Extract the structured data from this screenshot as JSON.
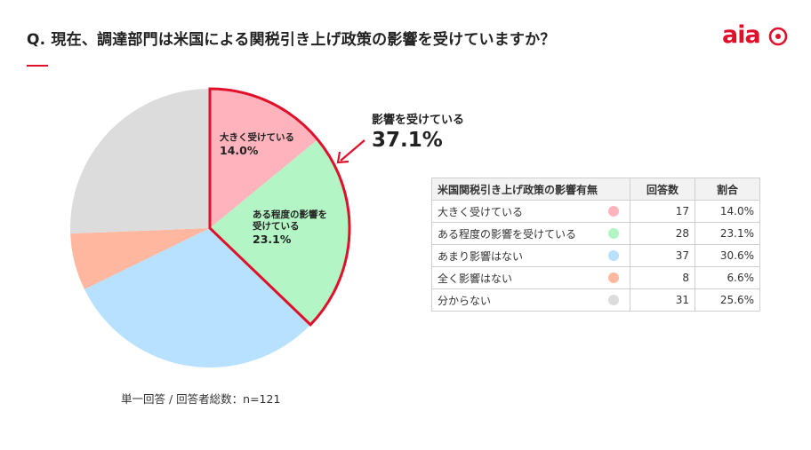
{
  "title": "Q. 現在、調達部門は米国による関税引き上げ政策の影響を受けていますか？",
  "logo": {
    "text": "aia",
    "icon": "aia-brand-mark-icon",
    "color": "#e0102b"
  },
  "chart_data": {
    "type": "pie",
    "start_angle_deg": 0,
    "direction": "clockwise",
    "slices": [
      {
        "label": "大きく受けている",
        "count": 17,
        "percent": 14.0,
        "color": "#ffb3bd"
      },
      {
        "label": "ある程度の影響を受けている",
        "count": 28,
        "percent": 23.1,
        "color": "#b3f5c4"
      },
      {
        "label": "あまり影響はない",
        "count": 37,
        "percent": 30.6,
        "color": "#b8e0ff"
      },
      {
        "label": "全く影響はない",
        "count": 8,
        "percent": 6.6,
        "color": "#ffb89f"
      },
      {
        "label": "分からない",
        "count": 31,
        "percent": 25.6,
        "color": "#dcdcdc"
      }
    ],
    "slice_labels": [
      {
        "text": "大きく受けている",
        "value": "14.0%"
      },
      {
        "text_lines": [
          "ある程度の影響を",
          "受けている"
        ],
        "value": "23.1%"
      }
    ],
    "highlight": {
      "slices": [
        0,
        1
      ],
      "outline_color": "#e0102b",
      "label": "影響を受けている",
      "value": "37.1%"
    },
    "footnote": "単一回答 / 回答者総数：n=121"
  },
  "table": {
    "headers": [
      "米国関税引き上げ政策の影響有無",
      "回答数",
      "割合"
    ],
    "rows": [
      {
        "label": "大きく受けている",
        "count": "17",
        "rate": "14.0%",
        "color": "#ffb3bd"
      },
      {
        "label": "ある程度の影響を受けている",
        "count": "28",
        "rate": "23.1%",
        "color": "#b3f5c4"
      },
      {
        "label": "あまり影響はない",
        "count": "37",
        "rate": "30.6%",
        "color": "#b8e0ff"
      },
      {
        "label": "全く影響はない",
        "count": "8",
        "rate": "6.6%",
        "color": "#ffb89f"
      },
      {
        "label": "分からない",
        "count": "31",
        "rate": "25.6%",
        "color": "#dcdcdc"
      }
    ]
  }
}
